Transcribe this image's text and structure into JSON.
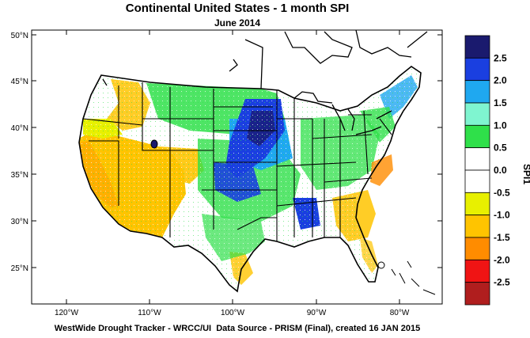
{
  "title": "Continental United States - 1 month SPI",
  "subtitle": "June 2014",
  "footer_left": "WestWide Drought Tracker - WRCC/UI",
  "footer_right": "Data Source - PRISM (Final), created 16 JAN 2015",
  "lat_labels": [
    "50°N",
    "45°N",
    "40°N",
    "35°N",
    "30°N",
    "25°N"
  ],
  "lon_labels": [
    "120°W",
    "110°W",
    "100°W",
    "90°W",
    "80°W"
  ],
  "colorbar": {
    "title": "SPI1",
    "labels": [
      "2.5",
      "2.0",
      "1.5",
      "1.0",
      "0.5",
      "0.0",
      "-0.5",
      "-1.0",
      "-1.5",
      "-2.0",
      "-2.5"
    ],
    "colors": [
      "#1a1a6e",
      "#1a3fe0",
      "#1fa8f0",
      "#7ff5d0",
      "#2fe04a",
      "#ffffff",
      "#ffffff",
      "#e8f000",
      "#ffc400",
      "#ff8c00",
      "#f01414",
      "#b01e1e"
    ]
  },
  "regions": {
    "wet_core": "central plains / midwest",
    "dry_core": "southwest / california"
  }
}
